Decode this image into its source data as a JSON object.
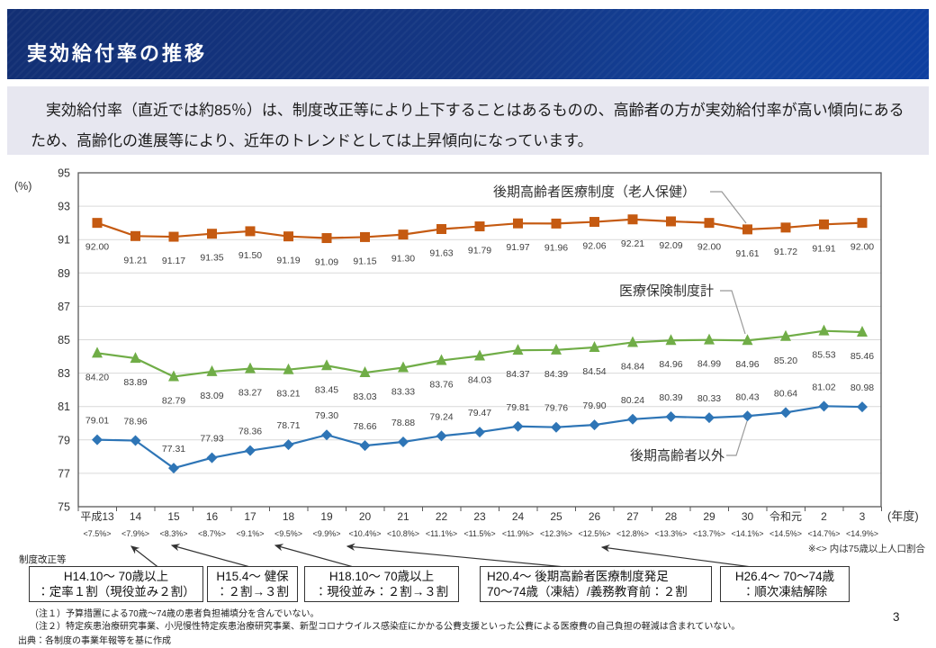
{
  "header": {
    "title": "実効給付率の推移"
  },
  "intro": {
    "text": "実効給付率（直近では約85％）は、制度改正等により上下することはあるものの、高齢者の方が実効給付率が高い傾向にあるため、高齢化の進展等により、近年のトレンドとしては上昇傾向になっています。"
  },
  "chart_data": {
    "type": "line",
    "y_unit_label": "(%)",
    "x_unit_label": "(年度)",
    "ylim": [
      75,
      95
    ],
    "ytick_step": 2,
    "grid": true,
    "categories": [
      "平成13",
      "14",
      "15",
      "16",
      "17",
      "18",
      "19",
      "20",
      "21",
      "22",
      "23",
      "24",
      "25",
      "26",
      "27",
      "28",
      "29",
      "30",
      "令和元",
      "2",
      "3"
    ],
    "pop_share": [
      "<7.5%>",
      "<7.9%>",
      "<8.3%>",
      "<8.7%>",
      "<9.1%>",
      "<9.5%>",
      "<9.9%>",
      "<10.4%>",
      "<10.8%>",
      "<11.1%>",
      "<11.5%>",
      "<11.9%>",
      "<12.3%>",
      "<12.5%>",
      "<12.8%>",
      "<13.3%>",
      "<13.7%>",
      "<14.1%>",
      "<14.5%>",
      "<14.7%>",
      "<14.9%>"
    ],
    "pop_share_note": "※<> 内は75歳以上人口割合",
    "series": [
      {
        "name": "後期高齢者医療制度（老人保健）",
        "marker": "square",
        "color": "#C55A11",
        "label_side": "below",
        "values": [
          92.0,
          91.21,
          91.17,
          91.35,
          91.5,
          91.19,
          91.09,
          91.15,
          91.3,
          91.63,
          91.79,
          91.97,
          91.96,
          92.06,
          92.21,
          92.09,
          92.0,
          91.61,
          91.72,
          91.91,
          92.0
        ]
      },
      {
        "name": "医療保険制度計",
        "marker": "triangle",
        "color": "#70AD47",
        "label_side": "below",
        "values": [
          84.2,
          83.89,
          82.79,
          83.09,
          83.27,
          83.21,
          83.45,
          83.03,
          83.33,
          83.76,
          84.03,
          84.37,
          84.39,
          84.54,
          84.84,
          84.96,
          84.99,
          84.96,
          85.2,
          85.53,
          85.46
        ]
      },
      {
        "name": "後期高齢者以外",
        "marker": "diamond",
        "color": "#2E75B6",
        "label_side": "above",
        "values": [
          79.01,
          78.96,
          77.31,
          77.93,
          78.36,
          78.71,
          79.3,
          78.66,
          78.88,
          79.24,
          79.47,
          79.81,
          79.76,
          79.9,
          80.24,
          80.39,
          80.33,
          80.43,
          80.64,
          81.02,
          80.98
        ]
      }
    ]
  },
  "reform": {
    "label": "制度改正等",
    "boxes": [
      {
        "line1": "H14.10～ 70歳以上",
        "line2": "：定率１割（現役並み２割）"
      },
      {
        "line1": "H15.4～ 健保",
        "line2": "：２割→３割"
      },
      {
        "line1": "H18.10～ 70歳以上",
        "line2": "：現役並み：２割→３割"
      },
      {
        "line1": "H20.4～ 後期高齢者医療制度発足",
        "line2": "70～74歳（凍結）/義務教育前：２割"
      },
      {
        "line1": "H26.4～ 70～74歳",
        "line2": "：順次凍結解除"
      }
    ]
  },
  "footer": {
    "note1": "（注１）予算措置による70歳～74歳の患者負担補填分を含んでいない。",
    "note2": "（注２）特定疾患治療研究事業、小児慢性特定疾患治療研究事業、新型コロナウイルス感染症にかかる公費支援といった公費による医療費の自己負担の軽減は含まれていない。",
    "source": "出典：各制度の事業年報等を基に作成",
    "page_number": "3"
  }
}
